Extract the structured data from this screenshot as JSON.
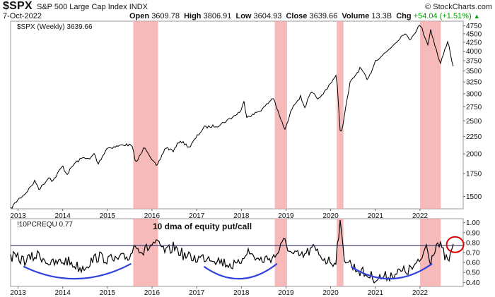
{
  "header": {
    "symbol": "$SPX",
    "name": "S&P 500 Large Cap Index",
    "exchange": "INDX",
    "date": "7-Oct-2022",
    "open_label": "Open",
    "open": "3609.78",
    "high_label": "High",
    "high": "3806.91",
    "low_label": "Low",
    "low": "3604.93",
    "close_label": "Close",
    "close": "3639.66",
    "volume_label": "Volume",
    "volume": "13.3B",
    "chg_label": "Chg",
    "chg": "+54.04 (+1.51%)",
    "watermark": "© StockCharts.com"
  },
  "colors": {
    "price_line": "#000000",
    "shade": "#f4a3a3",
    "arc": "#3344dd",
    "circle": "#dd0000",
    "hline": "#1a1a4a"
  },
  "chart_data": [
    {
      "type": "line",
      "legend_label": "$SPX (Weekly) 3639.66",
      "yscale": "log",
      "y_ticks": [
        1500,
        1750,
        2000,
        2250,
        2500,
        2750,
        3000,
        3250,
        3500,
        3750,
        4000,
        4250,
        4500,
        4750
      ],
      "ylim": [
        1380,
        4900
      ],
      "x_ticks": [
        "2013",
        "2014",
        "2015",
        "2016",
        "2017",
        "2018",
        "2019",
        "2020",
        "2021",
        "2022"
      ],
      "xlim": [
        "2012-11-01",
        "2022-12-20"
      ],
      "shaded_periods": [
        [
          "2015-08-01",
          "2016-02-20"
        ],
        [
          "2018-10-01",
          "2019-01-10"
        ],
        [
          "2020-02-20",
          "2020-04-15"
        ],
        [
          "2022-01-01",
          "2022-06-20"
        ]
      ],
      "series": [
        {
          "x": [
            "2012-11-01",
            "2013-01-01",
            "2013-03-01",
            "2013-05-20",
            "2013-06-24",
            "2013-09-18",
            "2013-10-08",
            "2013-12-31",
            "2014-02-03",
            "2014-04-10",
            "2014-06-30",
            "2014-08-07",
            "2014-09-18",
            "2014-10-15",
            "2014-12-29",
            "2015-03-10",
            "2015-05-20",
            "2015-07-20",
            "2015-08-24",
            "2015-11-03",
            "2016-01-20",
            "2016-02-11",
            "2016-04-20",
            "2016-06-27",
            "2016-08-15",
            "2016-11-04",
            "2016-12-30",
            "2017-03-01",
            "2017-06-30",
            "2017-10-30",
            "2017-12-29",
            "2018-01-26",
            "2018-02-09",
            "2018-04-02",
            "2018-06-29",
            "2018-09-20",
            "2018-10-29",
            "2018-12-24",
            "2019-02-28",
            "2019-04-30",
            "2019-06-03",
            "2019-07-26",
            "2019-10-02",
            "2019-12-31",
            "2020-02-19",
            "2020-03-23",
            "2020-06-08",
            "2020-09-02",
            "2020-10-30",
            "2020-12-31",
            "2021-03-31",
            "2021-06-30",
            "2021-09-02",
            "2021-10-04",
            "2021-12-31",
            "2022-01-03",
            "2022-03-08",
            "2022-03-29",
            "2022-06-16",
            "2022-08-16",
            "2022-09-30",
            "2022-10-07"
          ],
          "y": [
            1380,
            1470,
            1530,
            1665,
            1575,
            1720,
            1655,
            1845,
            1740,
            1880,
            1960,
            1920,
            2010,
            1860,
            2080,
            2100,
            2130,
            2115,
            1880,
            2100,
            1880,
            1830,
            2090,
            2040,
            2190,
            2090,
            2240,
            2390,
            2425,
            2575,
            2675,
            2870,
            2580,
            2600,
            2720,
            2930,
            2640,
            2350,
            2780,
            2940,
            2740,
            3025,
            2890,
            3230,
            3390,
            2240,
            3230,
            3580,
            3270,
            3750,
            3975,
            4300,
            4540,
            4300,
            4770,
            4795,
            4170,
            4630,
            3660,
            4305,
            3585,
            3640
          ]
        }
      ]
    },
    {
      "type": "line",
      "legend_label": "!10PCREQU 0.77",
      "annotation": "10 dma of equity put/call",
      "y_ticks": [
        0.4,
        0.5,
        0.6,
        0.7,
        0.8,
        0.9,
        1.0
      ],
      "ylim": [
        0.36,
        1.04
      ],
      "x_ticks": [
        "2013",
        "2014",
        "2015",
        "2016",
        "2017",
        "2018",
        "2019",
        "2020",
        "2021",
        "2022"
      ],
      "reference_line": 0.77,
      "series": [
        {
          "x": [
            "2012-11-01",
            "2013-03-01",
            "2013-06-20",
            "2013-10-01",
            "2014-02-01",
            "2014-06-01",
            "2014-10-15",
            "2015-03-01",
            "2015-07-01",
            "2015-08-24",
            "2015-10-15",
            "2016-01-20",
            "2016-02-11",
            "2016-05-01",
            "2016-06-27",
            "2016-10-01",
            "2016-12-30",
            "2017-04-15",
            "2017-08-10",
            "2017-12-01",
            "2018-02-09",
            "2018-06-01",
            "2018-10-01",
            "2018-12-24",
            "2019-02-15",
            "2019-05-15",
            "2019-08-10",
            "2019-12-01",
            "2020-02-10",
            "2020-03-16",
            "2020-04-20",
            "2020-07-01",
            "2020-10-15",
            "2021-01-15",
            "2021-04-01",
            "2021-07-01",
            "2021-10-01",
            "2022-01-01",
            "2022-02-20",
            "2022-03-29",
            "2022-05-15",
            "2022-06-16",
            "2022-08-16",
            "2022-10-07"
          ],
          "y": [
            0.66,
            0.62,
            0.68,
            0.58,
            0.62,
            0.54,
            0.66,
            0.62,
            0.66,
            0.8,
            0.7,
            0.8,
            0.78,
            0.7,
            0.76,
            0.66,
            0.64,
            0.66,
            0.6,
            0.56,
            0.72,
            0.62,
            0.66,
            0.82,
            0.68,
            0.66,
            0.74,
            0.62,
            0.6,
            1.0,
            0.66,
            0.56,
            0.48,
            0.44,
            0.46,
            0.5,
            0.52,
            0.6,
            0.78,
            0.62,
            0.8,
            0.76,
            0.6,
            0.77
          ]
        }
      ],
      "arcs": [
        [
          "2013-02-15",
          "2015-07-15"
        ],
        [
          "2017-03-01",
          "2018-10-20"
        ],
        [
          "2020-06-15",
          "2022-04-10"
        ]
      ],
      "highlight_circle": {
        "x": "2022-10-15",
        "y": 0.78
      }
    }
  ]
}
